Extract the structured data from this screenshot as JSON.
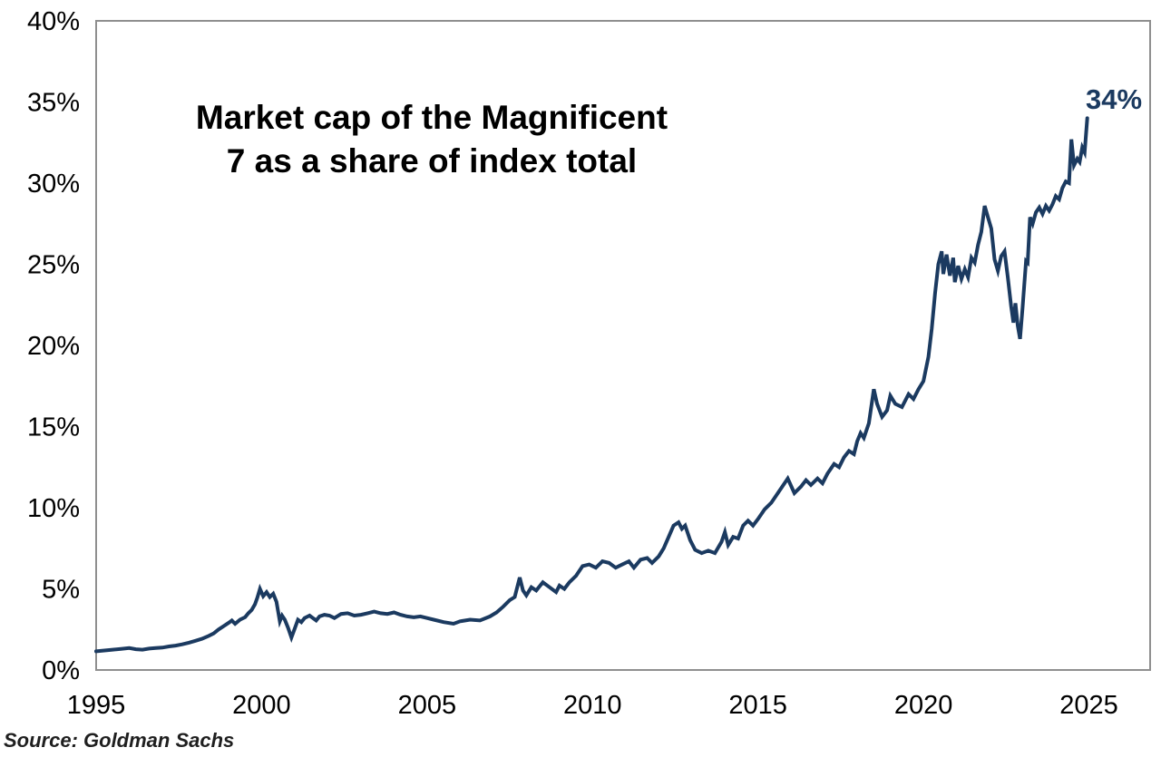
{
  "chart": {
    "title_line1": "Market cap of the Magnificent",
    "title_line2": "7 as a share of index total",
    "end_label": "34%",
    "source": "Source: Goldman Sachs"
  },
  "colors": {
    "line": "#1b3a60",
    "end_label": "#1b3a60",
    "axis_border": "#8f8f8f",
    "tick_text": "#000000",
    "background": "#ffffff"
  },
  "chart_data": {
    "type": "line",
    "title": "Market cap of the Magnificent 7 as a share of index total",
    "annotation": {
      "text": "34%",
      "x": 2024.95,
      "y": 34
    },
    "source": "Goldman Sachs",
    "grid": false,
    "legend": false,
    "x_axis": {
      "range": [
        1995,
        2026.85
      ],
      "tick_labels": [
        "1995",
        "2000",
        "2005",
        "2010",
        "2015",
        "2020",
        "2025"
      ]
    },
    "y_axis": {
      "range": [
        0,
        40
      ],
      "tick_labels": [
        "0%",
        "5%",
        "10%",
        "15%",
        "20%",
        "25%",
        "30%",
        "35%",
        "40%"
      ]
    },
    "series": [
      {
        "name": "Magnificent 7 market cap share of index total (%)",
        "points": [
          [
            1995.0,
            1.15
          ],
          [
            1995.25,
            1.2
          ],
          [
            1995.5,
            1.25
          ],
          [
            1995.75,
            1.3
          ],
          [
            1996.0,
            1.35
          ],
          [
            1996.2,
            1.28
          ],
          [
            1996.4,
            1.25
          ],
          [
            1996.6,
            1.32
          ],
          [
            1996.8,
            1.35
          ],
          [
            1997.0,
            1.38
          ],
          [
            1997.2,
            1.45
          ],
          [
            1997.4,
            1.5
          ],
          [
            1997.6,
            1.58
          ],
          [
            1997.8,
            1.68
          ],
          [
            1998.0,
            1.8
          ],
          [
            1998.2,
            1.92
          ],
          [
            1998.4,
            2.1
          ],
          [
            1998.55,
            2.25
          ],
          [
            1998.7,
            2.5
          ],
          [
            1998.85,
            2.7
          ],
          [
            1999.0,
            2.9
          ],
          [
            1999.1,
            3.05
          ],
          [
            1999.2,
            2.85
          ],
          [
            1999.35,
            3.1
          ],
          [
            1999.5,
            3.25
          ],
          [
            1999.6,
            3.5
          ],
          [
            1999.7,
            3.7
          ],
          [
            1999.8,
            4.05
          ],
          [
            1999.87,
            4.45
          ],
          [
            1999.95,
            5.0
          ],
          [
            2000.05,
            4.55
          ],
          [
            2000.15,
            4.8
          ],
          [
            2000.25,
            4.5
          ],
          [
            2000.35,
            4.7
          ],
          [
            2000.45,
            4.2
          ],
          [
            2000.55,
            3.0
          ],
          [
            2000.62,
            3.35
          ],
          [
            2000.7,
            3.1
          ],
          [
            2000.8,
            2.6
          ],
          [
            2000.9,
            2.0
          ],
          [
            2001.0,
            2.55
          ],
          [
            2001.1,
            3.1
          ],
          [
            2001.2,
            2.95
          ],
          [
            2001.3,
            3.2
          ],
          [
            2001.45,
            3.35
          ],
          [
            2001.55,
            3.2
          ],
          [
            2001.65,
            3.05
          ],
          [
            2001.75,
            3.3
          ],
          [
            2001.9,
            3.4
          ],
          [
            2002.05,
            3.35
          ],
          [
            2002.2,
            3.2
          ],
          [
            2002.4,
            3.45
          ],
          [
            2002.6,
            3.5
          ],
          [
            2002.8,
            3.35
          ],
          [
            2003.0,
            3.4
          ],
          [
            2003.2,
            3.5
          ],
          [
            2003.4,
            3.6
          ],
          [
            2003.6,
            3.5
          ],
          [
            2003.8,
            3.45
          ],
          [
            2004.0,
            3.55
          ],
          [
            2004.2,
            3.4
          ],
          [
            2004.4,
            3.3
          ],
          [
            2004.6,
            3.25
          ],
          [
            2004.8,
            3.3
          ],
          [
            2005.0,
            3.2
          ],
          [
            2005.2,
            3.1
          ],
          [
            2005.5,
            2.95
          ],
          [
            2005.8,
            2.85
          ],
          [
            2006.0,
            3.0
          ],
          [
            2006.3,
            3.1
          ],
          [
            2006.6,
            3.05
          ],
          [
            2006.9,
            3.3
          ],
          [
            2007.1,
            3.55
          ],
          [
            2007.3,
            3.9
          ],
          [
            2007.5,
            4.3
          ],
          [
            2007.65,
            4.5
          ],
          [
            2007.8,
            5.7
          ],
          [
            2007.9,
            4.9
          ],
          [
            2008.0,
            4.6
          ],
          [
            2008.15,
            5.1
          ],
          [
            2008.3,
            4.9
          ],
          [
            2008.5,
            5.4
          ],
          [
            2008.7,
            5.1
          ],
          [
            2008.9,
            4.8
          ],
          [
            2009.0,
            5.2
          ],
          [
            2009.15,
            5.0
          ],
          [
            2009.3,
            5.4
          ],
          [
            2009.5,
            5.8
          ],
          [
            2009.7,
            6.4
          ],
          [
            2009.9,
            6.5
          ],
          [
            2010.1,
            6.3
          ],
          [
            2010.3,
            6.7
          ],
          [
            2010.5,
            6.6
          ],
          [
            2010.7,
            6.3
          ],
          [
            2010.9,
            6.5
          ],
          [
            2011.1,
            6.7
          ],
          [
            2011.25,
            6.3
          ],
          [
            2011.45,
            6.8
          ],
          [
            2011.65,
            6.9
          ],
          [
            2011.8,
            6.6
          ],
          [
            2012.0,
            7.0
          ],
          [
            2012.15,
            7.5
          ],
          [
            2012.3,
            8.2
          ],
          [
            2012.45,
            8.9
          ],
          [
            2012.6,
            9.1
          ],
          [
            2012.7,
            8.7
          ],
          [
            2012.8,
            8.9
          ],
          [
            2012.95,
            8.0
          ],
          [
            2013.1,
            7.4
          ],
          [
            2013.3,
            7.2
          ],
          [
            2013.5,
            7.35
          ],
          [
            2013.7,
            7.2
          ],
          [
            2013.9,
            7.9
          ],
          [
            2014.0,
            8.5
          ],
          [
            2014.1,
            7.7
          ],
          [
            2014.25,
            8.2
          ],
          [
            2014.4,
            8.1
          ],
          [
            2014.55,
            8.9
          ],
          [
            2014.7,
            9.2
          ],
          [
            2014.85,
            8.9
          ],
          [
            2015.0,
            9.3
          ],
          [
            2015.2,
            9.9
          ],
          [
            2015.4,
            10.3
          ],
          [
            2015.6,
            10.9
          ],
          [
            2015.9,
            11.8
          ],
          [
            2016.1,
            10.9
          ],
          [
            2016.3,
            11.3
          ],
          [
            2016.45,
            11.7
          ],
          [
            2016.6,
            11.4
          ],
          [
            2016.8,
            11.8
          ],
          [
            2016.95,
            11.5
          ],
          [
            2017.1,
            12.1
          ],
          [
            2017.3,
            12.7
          ],
          [
            2017.45,
            12.5
          ],
          [
            2017.6,
            13.1
          ],
          [
            2017.75,
            13.5
          ],
          [
            2017.9,
            13.3
          ],
          [
            2018.0,
            14.1
          ],
          [
            2018.1,
            14.6
          ],
          [
            2018.2,
            14.3
          ],
          [
            2018.35,
            15.2
          ],
          [
            2018.5,
            17.3
          ],
          [
            2018.6,
            16.4
          ],
          [
            2018.75,
            15.6
          ],
          [
            2018.9,
            16.0
          ],
          [
            2019.0,
            16.9
          ],
          [
            2019.15,
            16.4
          ],
          [
            2019.35,
            16.2
          ],
          [
            2019.55,
            17.0
          ],
          [
            2019.7,
            16.7
          ],
          [
            2019.85,
            17.3
          ],
          [
            2020.0,
            17.8
          ],
          [
            2020.15,
            19.3
          ],
          [
            2020.25,
            21.0
          ],
          [
            2020.35,
            23.2
          ],
          [
            2020.45,
            25.0
          ],
          [
            2020.55,
            25.8
          ],
          [
            2020.6,
            24.4
          ],
          [
            2020.7,
            25.6
          ],
          [
            2020.8,
            24.3
          ],
          [
            2020.9,
            25.4
          ],
          [
            2020.95,
            23.9
          ],
          [
            2021.05,
            24.9
          ],
          [
            2021.15,
            24.1
          ],
          [
            2021.25,
            24.7
          ],
          [
            2021.35,
            24.2
          ],
          [
            2021.45,
            25.4
          ],
          [
            2021.55,
            25.1
          ],
          [
            2021.65,
            26.2
          ],
          [
            2021.75,
            27.0
          ],
          [
            2021.85,
            28.6
          ],
          [
            2021.95,
            27.9
          ],
          [
            2022.05,
            27.2
          ],
          [
            2022.15,
            25.3
          ],
          [
            2022.25,
            24.6
          ],
          [
            2022.35,
            25.5
          ],
          [
            2022.45,
            25.8
          ],
          [
            2022.55,
            24.2
          ],
          [
            2022.65,
            22.4
          ],
          [
            2022.72,
            21.4
          ],
          [
            2022.78,
            22.6
          ],
          [
            2022.85,
            21.2
          ],
          [
            2022.92,
            20.4
          ],
          [
            2023.0,
            22.4
          ],
          [
            2023.1,
            25.2
          ],
          [
            2023.15,
            25.1
          ],
          [
            2023.22,
            27.9
          ],
          [
            2023.3,
            27.5
          ],
          [
            2023.4,
            28.2
          ],
          [
            2023.5,
            28.5
          ],
          [
            2023.6,
            28.1
          ],
          [
            2023.7,
            28.6
          ],
          [
            2023.8,
            28.3
          ],
          [
            2023.9,
            28.7
          ],
          [
            2024.0,
            29.2
          ],
          [
            2024.1,
            29.0
          ],
          [
            2024.2,
            29.7
          ],
          [
            2024.3,
            30.1
          ],
          [
            2024.4,
            30.0
          ],
          [
            2024.47,
            32.7
          ],
          [
            2024.55,
            31.1
          ],
          [
            2024.65,
            31.5
          ],
          [
            2024.72,
            31.3
          ],
          [
            2024.8,
            32.2
          ],
          [
            2024.87,
            31.9
          ],
          [
            2024.95,
            34.0
          ]
        ]
      }
    ]
  }
}
